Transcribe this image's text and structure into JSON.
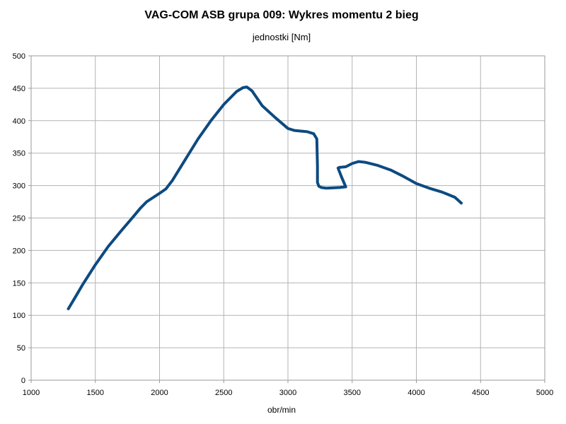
{
  "chart_data": {
    "type": "line",
    "title": "VAG-COM ASB grupa 009: Wykres momentu 2 bieg",
    "subtitle": "jednostki [Nm]",
    "xlabel": "obr/min",
    "ylabel": "",
    "xlim": [
      1000,
      5000
    ],
    "ylim": [
      0,
      500
    ],
    "x_ticks": [
      1000,
      1500,
      2000,
      2500,
      3000,
      3500,
      4000,
      4500,
      5000
    ],
    "y_ticks": [
      0,
      50,
      100,
      150,
      200,
      250,
      300,
      350,
      400,
      450,
      500
    ],
    "grid": true,
    "legend": "none",
    "series_color": "#0d4a80",
    "series": [
      {
        "x": [
          1290,
          1350,
          1400,
          1500,
          1600,
          1700,
          1800,
          1850,
          1900,
          2000,
          2050,
          2100,
          2200,
          2300,
          2400,
          2500,
          2600,
          2650,
          2680,
          2720,
          2800,
          2900,
          3000,
          3050,
          3100,
          3150,
          3200,
          3225,
          3230,
          3230,
          3240,
          3260,
          3300,
          3400,
          3450,
          3420,
          3390,
          3400,
          3450,
          3500,
          3550,
          3600,
          3700,
          3800,
          3900,
          4000,
          4100,
          4200,
          4300,
          4350
        ],
        "y": [
          110,
          130,
          147,
          178,
          206,
          230,
          253,
          265,
          275,
          288,
          295,
          308,
          340,
          372,
          400,
          425,
          445,
          451,
          452,
          446,
          423,
          405,
          388,
          385,
          384,
          383,
          380,
          372,
          330,
          305,
          299,
          297,
          296,
          297,
          298,
          312,
          327,
          328,
          329,
          334,
          337,
          336,
          331,
          324,
          314,
          303,
          296,
          290,
          282,
          273
        ]
      }
    ]
  }
}
